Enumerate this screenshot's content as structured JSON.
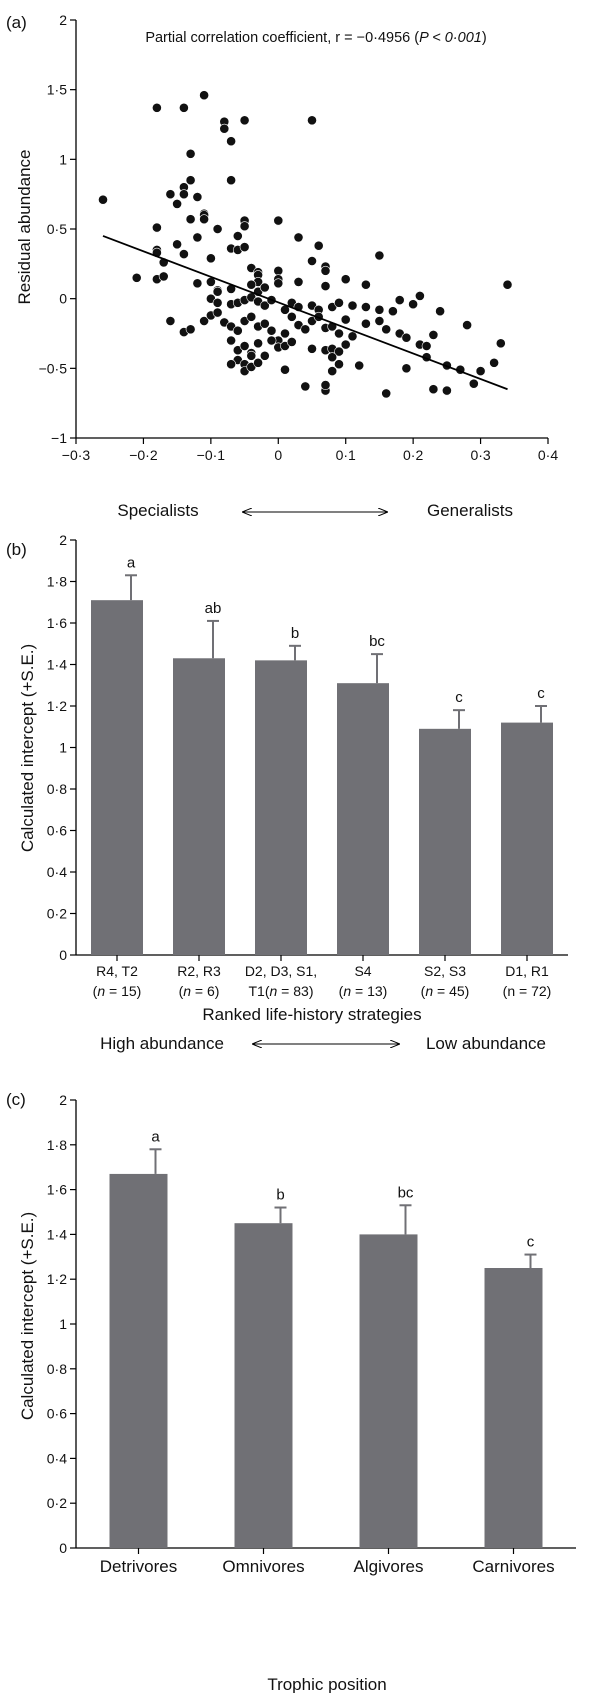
{
  "colors": {
    "bar": "#707075",
    "point": "#111111",
    "axis": "#000000"
  },
  "panels": {
    "a": {
      "tag": "(a)",
      "annotation": {
        "prefix": "Partial correlation coefficient, r = −0·4956 (",
        "p_italic": "P < 0·001",
        "suffix": ")"
      },
      "ylabel": "Residual abundance",
      "xtick_labels": [
        "−0·3",
        "−0·2",
        "−0·1",
        "0",
        "0·1",
        "0·2",
        "0·3",
        "0·4"
      ],
      "ytick_labels": [
        "−1",
        "−0·5",
        "0",
        "0·5",
        "1",
        "1·5",
        "2"
      ],
      "gradient_left": "Specialists",
      "gradient_right": "Generalists"
    },
    "b": {
      "tag": "(b)",
      "ylabel": "Calculated intercept (+S.E.)",
      "xlabel": "Ranked life-history strategies",
      "ytick_labels": [
        "0",
        "0·2",
        "0·4",
        "0·6",
        "0·8",
        "1",
        "1·2",
        "1·4",
        "1·6",
        "1·8",
        "2"
      ],
      "categories": [
        {
          "line1": "R4, T2",
          "line2": "(n = 15)",
          "n_italic": true
        },
        {
          "line1": "R2, R3",
          "line2": "(n = 6)",
          "n_italic": true
        },
        {
          "line1": "D2, D3, S1,",
          "line2": "T1(n = 83)",
          "n_italic": true
        },
        {
          "line1": "S4",
          "line2": "(n = 13)",
          "n_italic": true
        },
        {
          "line1": "S2, S3",
          "line2": "(n = 45)",
          "n_italic": true
        },
        {
          "line1": "D1, R1",
          "line2": "(n = 72)",
          "n_italic": false
        }
      ],
      "gradient_left": "High abundance",
      "gradient_right": "Low abundance"
    },
    "c": {
      "tag": "(c)",
      "ylabel": "Calculated intercept (+S.E.)",
      "xlabel": "Trophic position",
      "ytick_labels": [
        "0",
        "0·2",
        "0·4",
        "0·6",
        "0·8",
        "1",
        "1·2",
        "1·4",
        "1·6",
        "1·8",
        "2"
      ],
      "categories": [
        "Detrivores",
        "Omnivores",
        "Algivores",
        "Carnivores"
      ]
    }
  },
  "chart_data": [
    {
      "type": "scatter",
      "title": "",
      "xlabel": "",
      "ylabel": "Residual abundance",
      "xlim": [
        -0.3,
        0.4
      ],
      "ylim": [
        -1,
        2
      ],
      "trendline": {
        "x": [
          -0.26,
          0.34
        ],
        "y": [
          0.45,
          -0.65
        ]
      },
      "r": -0.4956,
      "p": "< 0.001",
      "points": [
        [
          -0.26,
          0.71
        ],
        [
          -0.18,
          1.37
        ],
        [
          -0.14,
          1.37
        ],
        [
          -0.11,
          1.46
        ],
        [
          -0.05,
          1.28
        ],
        [
          -0.08,
          1.27
        ],
        [
          -0.08,
          1.22
        ],
        [
          -0.07,
          0.85
        ],
        [
          -0.13,
          1.04
        ],
        [
          -0.07,
          1.13
        ],
        [
          -0.13,
          0.85
        ],
        [
          -0.14,
          0.8
        ],
        [
          -0.14,
          0.75
        ],
        [
          -0.12,
          0.73
        ],
        [
          -0.16,
          0.75
        ],
        [
          -0.15,
          0.68
        ],
        [
          -0.11,
          0.61
        ],
        [
          -0.11,
          0.6
        ],
        [
          -0.11,
          0.57
        ],
        [
          -0.13,
          0.57
        ],
        [
          -0.12,
          0.44
        ],
        [
          -0.09,
          0.5
        ],
        [
          -0.05,
          0.56
        ],
        [
          -0.05,
          0.52
        ],
        [
          -0.06,
          0.45
        ],
        [
          -0.18,
          0.51
        ],
        [
          -0.18,
          0.35
        ],
        [
          -0.15,
          0.39
        ],
        [
          -0.17,
          0.26
        ],
        [
          -0.18,
          0.33
        ],
        [
          -0.14,
          0.32
        ],
        [
          -0.1,
          0.29
        ],
        [
          -0.07,
          0.36
        ],
        [
          -0.06,
          0.35
        ],
        [
          -0.05,
          0.37
        ],
        [
          0.0,
          0.56
        ],
        [
          0.03,
          0.44
        ],
        [
          0.06,
          0.38
        ],
        [
          0.05,
          1.28
        ],
        [
          -0.21,
          0.15
        ],
        [
          -0.18,
          0.14
        ],
        [
          -0.17,
          0.16
        ],
        [
          -0.12,
          0.11
        ],
        [
          -0.1,
          0.12
        ],
        [
          -0.09,
          0.06
        ],
        [
          -0.09,
          0.05
        ],
        [
          -0.07,
          0.07
        ],
        [
          -0.04,
          0.22
        ],
        [
          -0.03,
          0.19
        ],
        [
          -0.03,
          0.17
        ],
        [
          -0.03,
          0.12
        ],
        [
          -0.04,
          0.1
        ],
        [
          -0.03,
          0.05
        ],
        [
          -0.02,
          0.08
        ],
        [
          0.0,
          0.2
        ],
        [
          0.0,
          0.14
        ],
        [
          0.0,
          0.11
        ],
        [
          0.03,
          0.12
        ],
        [
          0.05,
          0.27
        ],
        [
          0.07,
          0.23
        ],
        [
          0.07,
          0.2
        ],
        [
          0.07,
          0.09
        ],
        [
          0.1,
          0.14
        ],
        [
          0.13,
          0.1
        ],
        [
          0.15,
          0.31
        ],
        [
          0.21,
          0.02
        ],
        [
          0.18,
          -0.01
        ],
        [
          0.24,
          -0.09
        ],
        [
          0.34,
          0.1
        ],
        [
          -0.1,
          0.0
        ],
        [
          -0.09,
          -0.03
        ],
        [
          -0.07,
          -0.04
        ],
        [
          -0.06,
          -0.03
        ],
        [
          -0.05,
          -0.01
        ],
        [
          -0.04,
          0.01
        ],
        [
          -0.03,
          -0.02
        ],
        [
          -0.02,
          -0.05
        ],
        [
          -0.01,
          -0.01
        ],
        [
          0.01,
          -0.08
        ],
        [
          0.02,
          -0.03
        ],
        [
          0.03,
          -0.06
        ],
        [
          0.05,
          -0.05
        ],
        [
          0.06,
          -0.08
        ],
        [
          0.08,
          -0.06
        ],
        [
          0.09,
          -0.03
        ],
        [
          0.11,
          -0.05
        ],
        [
          0.13,
          -0.06
        ],
        [
          0.15,
          -0.08
        ],
        [
          0.17,
          -0.09
        ],
        [
          0.2,
          -0.04
        ],
        [
          -0.16,
          -0.16
        ],
        [
          -0.14,
          -0.24
        ],
        [
          -0.13,
          -0.22
        ],
        [
          -0.11,
          -0.16
        ],
        [
          -0.1,
          -0.12
        ],
        [
          -0.09,
          -0.1
        ],
        [
          -0.08,
          -0.17
        ],
        [
          -0.07,
          -0.2
        ],
        [
          -0.06,
          -0.23
        ],
        [
          -0.05,
          -0.16
        ],
        [
          -0.04,
          -0.13
        ],
        [
          -0.03,
          -0.2
        ],
        [
          -0.02,
          -0.18
        ],
        [
          -0.01,
          -0.23
        ],
        [
          0.0,
          -0.3
        ],
        [
          0.01,
          -0.25
        ],
        [
          0.02,
          -0.13
        ],
        [
          0.03,
          -0.19
        ],
        [
          0.04,
          -0.22
        ],
        [
          0.05,
          -0.16
        ],
        [
          0.06,
          -0.13
        ],
        [
          0.07,
          -0.21
        ],
        [
          0.08,
          -0.2
        ],
        [
          0.09,
          -0.25
        ],
        [
          0.1,
          -0.15
        ],
        [
          0.11,
          -0.27
        ],
        [
          0.13,
          -0.18
        ],
        [
          0.15,
          -0.16
        ],
        [
          0.16,
          -0.22
        ],
        [
          0.18,
          -0.25
        ],
        [
          0.19,
          -0.28
        ],
        [
          0.23,
          -0.26
        ],
        [
          0.28,
          -0.19
        ],
        [
          -0.07,
          -0.3
        ],
        [
          -0.06,
          -0.37
        ],
        [
          -0.05,
          -0.34
        ],
        [
          -0.04,
          -0.39
        ],
        [
          -0.03,
          -0.32
        ],
        [
          -0.02,
          -0.41
        ],
        [
          -0.01,
          -0.3
        ],
        [
          0.0,
          -0.35
        ],
        [
          0.01,
          -0.34
        ],
        [
          0.02,
          -0.31
        ],
        [
          0.05,
          -0.36
        ],
        [
          0.07,
          -0.37
        ],
        [
          0.08,
          -0.36
        ],
        [
          0.09,
          -0.38
        ],
        [
          0.1,
          -0.33
        ],
        [
          -0.06,
          -0.44
        ],
        [
          -0.05,
          -0.47
        ],
        [
          -0.04,
          -0.41
        ],
        [
          -0.05,
          -0.52
        ],
        [
          -0.04,
          -0.49
        ],
        [
          -0.03,
          -0.46
        ],
        [
          -0.07,
          -0.47
        ],
        [
          0.01,
          -0.51
        ],
        [
          0.04,
          -0.63
        ],
        [
          0.07,
          -0.66
        ],
        [
          0.07,
          -0.62
        ],
        [
          0.08,
          -0.42
        ],
        [
          0.08,
          -0.52
        ],
        [
          0.09,
          -0.47
        ],
        [
          0.12,
          -0.48
        ],
        [
          0.16,
          -0.68
        ],
        [
          0.19,
          -0.5
        ],
        [
          0.21,
          -0.33
        ],
        [
          0.22,
          -0.34
        ],
        [
          0.22,
          -0.42
        ],
        [
          0.23,
          -0.65
        ],
        [
          0.25,
          -0.48
        ],
        [
          0.25,
          -0.66
        ],
        [
          0.27,
          -0.51
        ],
        [
          0.29,
          -0.61
        ],
        [
          0.3,
          -0.52
        ],
        [
          0.32,
          -0.46
        ],
        [
          0.33,
          -0.32
        ]
      ]
    },
    {
      "type": "bar",
      "title": "",
      "xlabel": "Ranked life-history strategies",
      "ylabel": "Calculated intercept (+S.E.)",
      "ylim": [
        0,
        2
      ],
      "categories": [
        "R4, T2 (n = 15)",
        "R2, R3 (n = 6)",
        "D2, D3, S1, T1(n = 83)",
        "S4 (n = 13)",
        "S2, S3 (n = 45)",
        "D1, R1 (n = 72)"
      ],
      "values": [
        1.71,
        1.43,
        1.42,
        1.31,
        1.09,
        1.12
      ],
      "se": [
        0.12,
        0.18,
        0.07,
        0.14,
        0.09,
        0.08
      ],
      "labels": [
        "a",
        "ab",
        "b",
        "bc",
        "c",
        "c"
      ]
    },
    {
      "type": "bar",
      "title": "",
      "xlabel": "Trophic position",
      "ylabel": "Calculated intercept (+S.E.)",
      "ylim": [
        0,
        2
      ],
      "categories": [
        "Detrivores",
        "Omnivores",
        "Algivores",
        "Carnivores"
      ],
      "values": [
        1.67,
        1.45,
        1.4,
        1.25
      ],
      "se": [
        0.11,
        0.07,
        0.13,
        0.06
      ],
      "labels": [
        "a",
        "b",
        "bc",
        "c"
      ]
    }
  ]
}
